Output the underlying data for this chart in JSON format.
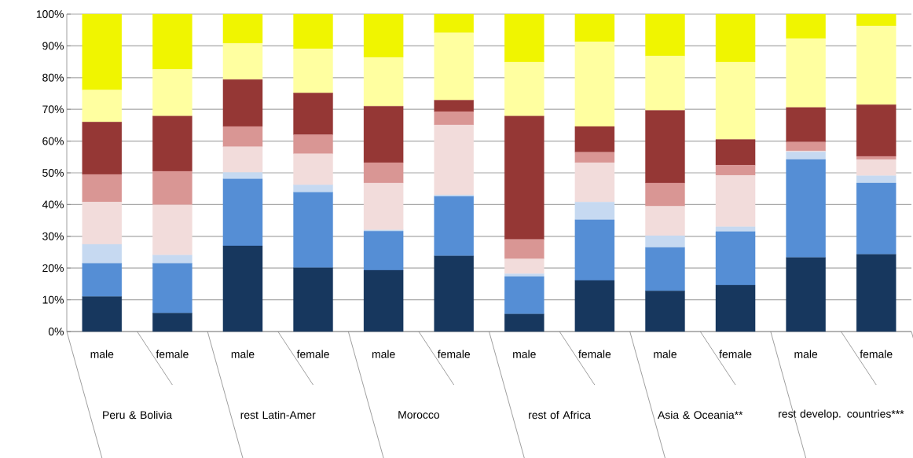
{
  "chart_data": {
    "type": "bar",
    "stacked": true,
    "grid": "y",
    "categories": [
      "male",
      "female",
      "male",
      "female",
      "male",
      "female",
      "male",
      "female",
      "male",
      "female",
      "male",
      "female"
    ],
    "annotations": [
      "Peru & Bolivia",
      "rest Latin-Amer",
      "Morocco",
      "rest of Africa",
      "Asia & Oceania**",
      "rest develop. countries***"
    ],
    "ylim": [
      0,
      100
    ],
    "yticks": [
      {
        "value": 0,
        "label": "0%"
      },
      {
        "value": 10,
        "label": "10%"
      },
      {
        "value": 20,
        "label": "20%"
      },
      {
        "value": 30,
        "label": "30%"
      },
      {
        "value": 40,
        "label": "40%"
      },
      {
        "value": 50,
        "label": "50%"
      },
      {
        "value": 60,
        "label": "60%"
      },
      {
        "value": 70,
        "label": "70%"
      },
      {
        "value": 80,
        "label": "80%"
      },
      {
        "value": 90,
        "label": "90%"
      },
      {
        "value": 100,
        "label": "100%"
      }
    ],
    "series": [
      {
        "color": "#17375e",
        "values": [
          11.0,
          5.8,
          27.0,
          20.1,
          19.3,
          23.8,
          5.5,
          16.1,
          12.8,
          14.6,
          23.3,
          24.3
        ]
      },
      {
        "color": "#558ed5",
        "values": [
          10.5,
          15.7,
          21.1,
          23.8,
          12.3,
          18.8,
          11.8,
          19.1,
          13.7,
          16.9,
          30.9,
          22.5
        ]
      },
      {
        "color": "#c6d9f1",
        "values": [
          6.0,
          2.6,
          2.0,
          2.3,
          0.4,
          0.4,
          0.9,
          5.6,
          3.7,
          1.5,
          2.4,
          2.3
        ]
      },
      {
        "color": "#f2dcdb",
        "values": [
          13.3,
          15.8,
          8.1,
          9.8,
          14.8,
          22.1,
          4.7,
          12.4,
          9.3,
          16.2,
          0.3,
          5.1
        ]
      },
      {
        "color": "#d99694",
        "values": [
          8.7,
          10.6,
          6.4,
          6.0,
          6.4,
          4.2,
          6.1,
          3.3,
          7.3,
          3.2,
          2.8,
          1.0
        ]
      },
      {
        "color": "#953735",
        "values": [
          16.5,
          17.4,
          14.8,
          13.2,
          17.8,
          3.6,
          38.9,
          8.1,
          22.9,
          8.1,
          10.9,
          16.3
        ]
      },
      {
        "color": "#ffffa0",
        "values": [
          10.1,
          14.7,
          11.4,
          13.9,
          15.4,
          21.2,
          17.0,
          26.7,
          17.1,
          24.4,
          21.7,
          24.8
        ]
      },
      {
        "color": "#f0f500",
        "values": [
          23.9,
          17.4,
          9.2,
          10.9,
          13.6,
          5.9,
          15.1,
          8.7,
          13.2,
          15.1,
          7.7,
          3.7
        ]
      }
    ]
  }
}
